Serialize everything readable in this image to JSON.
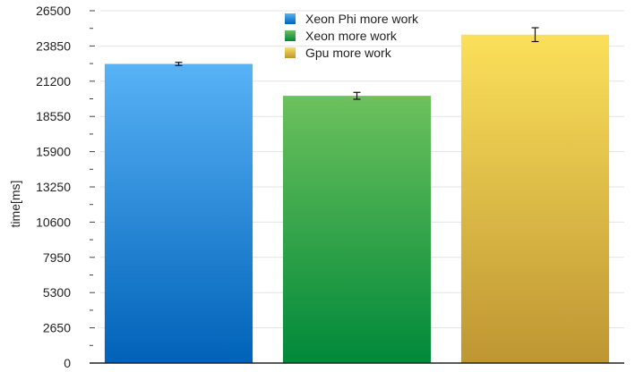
{
  "chart_data": {
    "type": "bar",
    "title": "",
    "xlabel": "",
    "ylabel": "time[ms]",
    "ylim": [
      0,
      26500
    ],
    "yticks": [
      0,
      2650,
      5300,
      7950,
      10600,
      13250,
      15900,
      18550,
      21200,
      23850,
      26500
    ],
    "grid": true,
    "legend_position": "top",
    "series": [
      {
        "name": "Xeon Phi more work",
        "value": 22500,
        "error": 120,
        "color_top": "#58b2f6",
        "color_bottom": "#0062b8"
      },
      {
        "name": "Xeon more work",
        "value": 20100,
        "error": 260,
        "color_top": "#6cc15c",
        "color_bottom": "#00893a"
      },
      {
        "name": "Gpu more work",
        "value": 24700,
        "error": 520,
        "color_top": "#fbe05a",
        "color_bottom": "#be9633"
      }
    ]
  }
}
